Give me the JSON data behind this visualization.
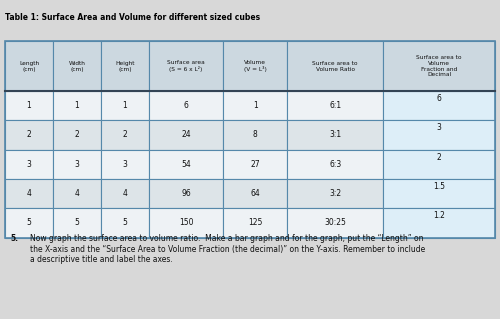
{
  "title": "Table 1: Surface Area and Volume for different sized cubes",
  "col_headers": [
    "Length\n(cm)",
    "Width\n(cm)",
    "Height\n(cm)",
    "Surface area\n(S = 6 x L²)",
    "Volume\n(V = L³)",
    "Surface area to\nVolume Ratio",
    "Surface area to\nVolume\nFraction and\nDecimal"
  ],
  "rows": [
    [
      "1",
      "1",
      "1",
      "6",
      "1",
      "6:1",
      "6"
    ],
    [
      "2",
      "2",
      "2",
      "24",
      "8",
      "3:1",
      "3"
    ],
    [
      "3",
      "3",
      "3",
      "54",
      "27",
      "6:3",
      "2"
    ],
    [
      "4",
      "4",
      "4",
      "96",
      "64",
      "3:2",
      "1.5"
    ],
    [
      "5",
      "5",
      "5",
      "150",
      "125",
      "30:25",
      "1.2"
    ]
  ],
  "instruction_number": "5.",
  "instruction_text": "Now graph the surface area to volume ratio.  Make a bar graph and for the graph, put the “Length” on\nthe X-axis and the “Surface Area to Volume Fraction (the decimal)” on the Y-axis. Remember to include\na descriptive title and label the axes.",
  "bg_color": "#d8d8d8",
  "table_bg": "#e8e8e8",
  "header_bg": "#c8c8c8",
  "cell_bg_light": "#f0f0f0",
  "cell_bg_dark": "#e0e0e0",
  "last_col_bg": "#ddeeff",
  "border_color": "#5588aa",
  "text_color": "#111111",
  "title_color": "#000000"
}
